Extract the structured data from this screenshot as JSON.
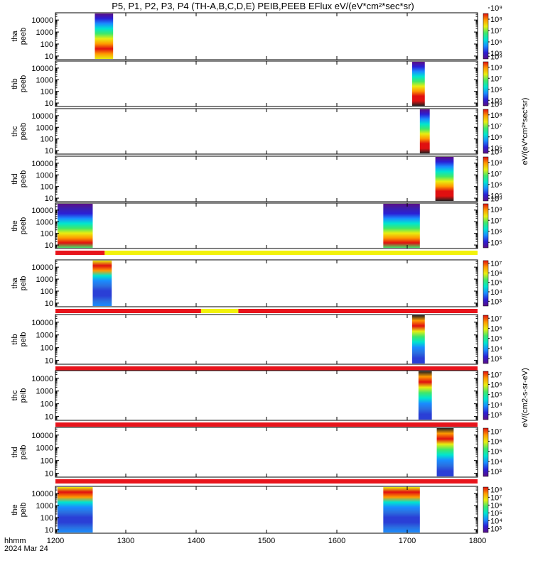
{
  "chart_data": {
    "type": "heatmap",
    "title": "P5, P1, P2, P3, P4 (TH-A,B,C,D,E) PEIB,PEEB EFlux eV/(eV*cm²*sec*sr)",
    "x_axis": {
      "label_line1": "hhmm",
      "label_line2": "2024 Mar 24",
      "range": [
        1200,
        1800
      ],
      "ticks": [
        "1200",
        "1300",
        "1400",
        "1500",
        "1600",
        "1700",
        "1800"
      ]
    },
    "y_scale": "log",
    "colorbar_label_electron": "eV/(eV*cm²*sec*sr)",
    "colorbar_label_ion": "eV/(cm2-s-sr-eV)",
    "colormap": [
      "#5b0f86",
      "#2a1fd6",
      "#1a8cff",
      "#00e5d0",
      "#3fe86a",
      "#e8ee10",
      "#ff9a00",
      "#e01010"
    ],
    "panels": [
      {
        "label1": "tha",
        "label2": "peeb",
        "yticks": [
          "10",
          "100",
          "1000",
          "10000"
        ],
        "ylim": [
          5,
          40000
        ],
        "cbticks": [
          "10⁵",
          "10⁶",
          "10⁷",
          "10⁸",
          "10⁹"
        ],
        "cbrange": [
          5,
          9
        ],
        "blocks": [
          {
            "x": [
              1256,
              1282
            ],
            "profile": "e_hot"
          }
        ],
        "bar": null
      },
      {
        "label1": "thb",
        "label2": "peeb",
        "yticks": [
          "10",
          "100",
          "1000",
          "10000"
        ],
        "ylim": [
          5,
          40000
        ],
        "cbticks": [
          "10⁵",
          "10⁶",
          "10⁷",
          "10⁸",
          "10⁹"
        ],
        "cbrange": [
          5,
          9
        ],
        "blocks": [
          {
            "x": [
              1707,
              1725
            ],
            "profile": "e_edge"
          }
        ],
        "bar": null
      },
      {
        "label1": "thc",
        "label2": "peeb",
        "yticks": [
          "10",
          "100",
          "1000",
          "10000"
        ],
        "ylim": [
          5,
          40000
        ],
        "cbticks": [
          "10⁵",
          "10⁶",
          "10⁷",
          "10⁸",
          "10⁹"
        ],
        "cbrange": [
          5,
          9
        ],
        "blocks": [
          {
            "x": [
              1718,
              1732
            ],
            "profile": "e_edge"
          }
        ],
        "bar": null
      },
      {
        "label1": "thd",
        "label2": "peeb",
        "yticks": [
          "10",
          "100",
          "1000",
          "10000"
        ],
        "ylim": [
          5,
          40000
        ],
        "cbticks": [
          "10⁵",
          "10⁶",
          "10⁷",
          "10⁸",
          "10⁹"
        ],
        "cbrange": [
          5,
          9
        ],
        "blocks": [
          {
            "x": [
              1740,
              1766
            ],
            "profile": "e_edge"
          }
        ],
        "bar": null
      },
      {
        "label1": "the",
        "label2": "peeb",
        "yticks": [
          "10",
          "100",
          "1000",
          "10000"
        ],
        "ylim": [
          5,
          40000
        ],
        "cbticks": [
          "10⁵",
          "10⁶",
          "10⁷",
          "10⁸",
          "10⁹"
        ],
        "cbrange": [
          5,
          9
        ],
        "blocks": [
          {
            "x": [
              1203,
              1253
            ],
            "profile": "e_sheet"
          },
          {
            "x": [
              1666,
              1718
            ],
            "profile": "e_sheet"
          }
        ],
        "bar": [
          {
            "x": [
              1200,
              1270
            ],
            "color": "#e8141c"
          },
          {
            "x": [
              1270,
              1800
            ],
            "color": "#f2f20a"
          }
        ]
      },
      {
        "label1": "tha",
        "label2": "peib",
        "yticks": [
          "10",
          "100",
          "1000",
          "10000"
        ],
        "ylim": [
          5,
          40000
        ],
        "cbticks": [
          "10³",
          "10⁴",
          "10⁵",
          "10⁶",
          "10⁷"
        ],
        "cbrange": [
          2.6,
          7.4
        ],
        "blocks": [
          {
            "x": [
              1253,
              1280
            ],
            "profile": "i_band"
          }
        ],
        "bar": [
          {
            "x": [
              1200,
              1407
            ],
            "color": "#e8141c"
          },
          {
            "x": [
              1407,
              1460
            ],
            "color": "#f2f20a"
          },
          {
            "x": [
              1460,
              1800
            ],
            "color": "#e8141c"
          }
        ]
      },
      {
        "label1": "thb",
        "label2": "peib",
        "yticks": [
          "10",
          "100",
          "1000",
          "10000"
        ],
        "ylim": [
          5,
          40000
        ],
        "cbticks": [
          "10³",
          "10⁴",
          "10⁵",
          "10⁶",
          "10⁷"
        ],
        "cbrange": [
          2.6,
          7.4
        ],
        "blocks": [
          {
            "x": [
              1707,
              1725
            ],
            "profile": "i_top"
          }
        ],
        "bar": [
          {
            "x": [
              1200,
              1800
            ],
            "color": "#e8141c"
          }
        ]
      },
      {
        "label1": "thc",
        "label2": "peib",
        "yticks": [
          "10",
          "100",
          "1000",
          "10000"
        ],
        "ylim": [
          5,
          40000
        ],
        "cbticks": [
          "10³",
          "10⁴",
          "10⁵",
          "10⁶",
          "10⁷"
        ],
        "cbrange": [
          2.6,
          7.4
        ],
        "blocks": [
          {
            "x": [
              1716,
              1735
            ],
            "profile": "i_top"
          }
        ],
        "bar": [
          {
            "x": [
              1200,
              1800
            ],
            "color": "#e8141c"
          }
        ]
      },
      {
        "label1": "thd",
        "label2": "peib",
        "yticks": [
          "10",
          "100",
          "1000",
          "10000"
        ],
        "ylim": [
          5,
          40000
        ],
        "cbticks": [
          "10³",
          "10⁴",
          "10⁵",
          "10⁶",
          "10⁷"
        ],
        "cbrange": [
          2.6,
          7.4
        ],
        "blocks": [
          {
            "x": [
              1742,
              1766
            ],
            "profile": "i_top"
          }
        ],
        "bar": [
          {
            "x": [
              1200,
              1800
            ],
            "color": "#e8141c"
          }
        ]
      },
      {
        "label1": "the",
        "label2": "peib",
        "yticks": [
          "10",
          "100",
          "1000",
          "10000"
        ],
        "ylim": [
          5,
          40000
        ],
        "cbticks": [
          "10³",
          "10⁴",
          "10⁵",
          "10⁶",
          "10⁷",
          "10⁸"
        ],
        "cbrange": [
          2.6,
          8.4
        ],
        "blocks": [
          {
            "x": [
              1203,
              1253
            ],
            "profile": "i_band"
          },
          {
            "x": [
              1666,
              1718
            ],
            "profile": "i_band"
          }
        ],
        "bar": null
      }
    ]
  }
}
